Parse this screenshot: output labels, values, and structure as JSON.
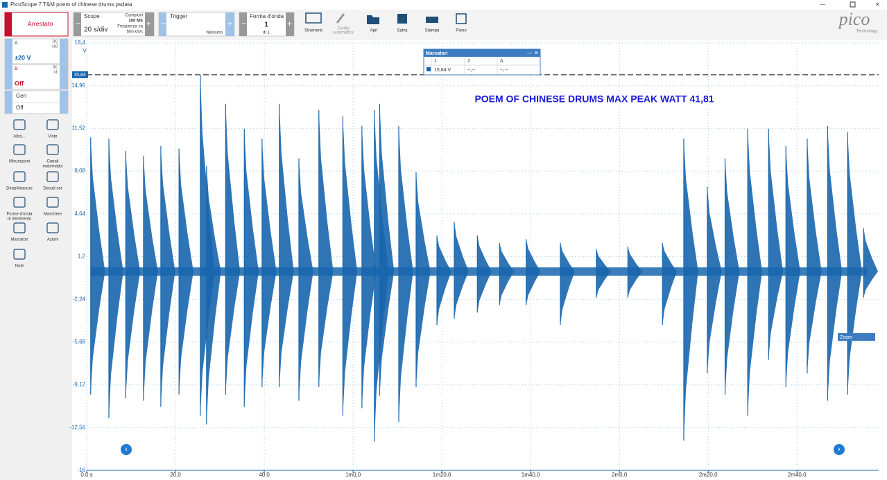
{
  "title_bar": "PicoScope 7 T&M poem of chinese drums.psdata",
  "toolbar": {
    "run_button": "Arrestato",
    "scope": {
      "label": "Scope",
      "timebase": "20 s/div",
      "samples_label": "Campioni",
      "samples": "100 MS",
      "rate_label": "Frequenza ca",
      "rate": "500 kS/s"
    },
    "trigger": {
      "label": "Trigger",
      "mode": "Nessuno"
    },
    "waveform": {
      "label": "Forma d'onda",
      "index": "1",
      "of": "di 1"
    },
    "tools": [
      [
        "Strumenti"
      ],
      [
        "Config",
        "automatica"
      ],
      [
        "Apri"
      ],
      [
        "Salva"
      ],
      [
        "Stampa"
      ],
      [
        "Pieno"
      ]
    ],
    "logo": "pico",
    "logo_sub": "Technology"
  },
  "channels": [
    {
      "name": "A",
      "coupling": "DC",
      "probe": "x10",
      "range": "±20 V"
    },
    {
      "name": "B",
      "coupling": "DC",
      "probe": "x1",
      "range": "Off"
    },
    {
      "name": "Gen",
      "range": "Off"
    }
  ],
  "sidebar": [
    [
      "Altro..."
    ],
    [
      "Viste"
    ],
    [
      "Misurazioni"
    ],
    [
      "Canali",
      "matematici"
    ],
    [
      "DeepMeasure"
    ],
    [
      "Decod ser"
    ],
    [
      "Forme d'onda",
      "di riferimento"
    ],
    [
      "Maschere"
    ],
    [
      "Marcatori"
    ],
    [
      "Azioni"
    ],
    [
      "Note"
    ]
  ],
  "markers_window": {
    "title": "Marcatori",
    "columns": [
      "1",
      "2",
      "Δ"
    ],
    "row": [
      "15,84 V",
      "--,--",
      "--,--"
    ]
  },
  "zoom": "Zoom",
  "chart_data": {
    "type": "scope",
    "annotation": "POEM OF CHINESE DRUMS MAX PEAK WATT 41,81",
    "y_unit": "V",
    "color": "#1866ae",
    "grid": true,
    "xlim": [
      0,
      178.4
    ],
    "xticks": [
      {
        "value": 0,
        "label": "0,0 s"
      },
      {
        "value": 20,
        "label": "20,0"
      },
      {
        "value": 40,
        "label": "40,0"
      },
      {
        "value": 60,
        "label": "1m0,0"
      },
      {
        "value": 80,
        "label": "1m20,0"
      },
      {
        "value": 100,
        "label": "1m40,0"
      },
      {
        "value": 120,
        "label": "2m0,0"
      },
      {
        "value": 140,
        "label": "2m20,0"
      },
      {
        "value": 160,
        "label": "2m40,0"
      }
    ],
    "ylim": [
      -16,
      18.4
    ],
    "yticks": [
      {
        "value": 18.4,
        "label": "18,4"
      },
      {
        "value": 14.96,
        "label": "14,96"
      },
      {
        "value": 11.52,
        "label": "11,52"
      },
      {
        "value": 8.08,
        "label": "8,08"
      },
      {
        "value": 4.64,
        "label": "4,64"
      },
      {
        "value": 1.2,
        "label": "1,2"
      },
      {
        "value": -2.24,
        "label": "-2,24"
      },
      {
        "value": -5.68,
        "label": "-5,68"
      },
      {
        "value": -9.12,
        "label": "-9,12"
      },
      {
        "value": -12.56,
        "label": "-12,56"
      },
      {
        "value": -16,
        "label": "-16"
      }
    ],
    "marker": {
      "value": 15.84,
      "label": "15,84"
    },
    "x": [
      0.9,
      5,
      8.8,
      12.8,
      16.7,
      20.8,
      25.6,
      27,
      31.3,
      35.5,
      39.5,
      43.4,
      47.8,
      52.3,
      57.7,
      62,
      64.8,
      66,
      70.3,
      74.2,
      78.9,
      82.8,
      88,
      93,
      99,
      106.7,
      114.8,
      121.9,
      129.7,
      134.5,
      139.8,
      143.8,
      148.9,
      153.6,
      157.5,
      162.3,
      166.9,
      171.4,
      175
    ],
    "peak_max": [
      10.8,
      10.7,
      9.7,
      9.3,
      10.1,
      9.9,
      15.8,
      8.5,
      13.5,
      11.5,
      10.7,
      13.5,
      9.1,
      13,
      12.5,
      11.7,
      13,
      13.5,
      11.7,
      8,
      2.9,
      4,
      2.9,
      2.3,
      2.6,
      2.3,
      1.8,
      2,
      2.3,
      10.7,
      6.8,
      9.1,
      11.5,
      11.5,
      10.1,
      10.7,
      11.7,
      11.2,
      3.5
    ],
    "peak_min": [
      -9.9,
      -11.8,
      -10.2,
      -10.4,
      -10.9,
      -9.9,
      -11.6,
      -12.3,
      -9.9,
      -10.9,
      -9.3,
      -9.3,
      -10.4,
      -9.3,
      -11.6,
      -11,
      -13.7,
      -10,
      -12.1,
      -9.3,
      -4.3,
      -3.8,
      -3.3,
      -2.7,
      -2.7,
      -4.3,
      -2.1,
      -2.1,
      -4.3,
      -13.6,
      -8.2,
      -9.9,
      -11.6,
      -7.1,
      -9.3,
      -8.2,
      -10.4,
      -9.9,
      -2.1
    ]
  }
}
